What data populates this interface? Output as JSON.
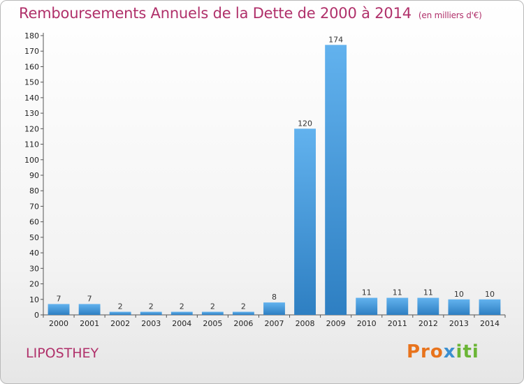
{
  "title": "Remboursements Annuels de la Dette de 2000 à 2014",
  "subtitle": "(en milliers d'€)",
  "commune": "LIPOSTHEY",
  "logo": {
    "part1": "Pro",
    "part2": "x",
    "part3": "iti"
  },
  "colors": {
    "title": "#b0306a",
    "bar_top": "#62b2ee",
    "bar_bottom": "#2e7fc2"
  },
  "chart_data": {
    "type": "bar",
    "title": "Remboursements Annuels de la Dette de 2000 à 2014",
    "subtitle": "(en milliers d'€)",
    "categories": [
      "2000",
      "2001",
      "2002",
      "2003",
      "2004",
      "2005",
      "2006",
      "2007",
      "2008",
      "2009",
      "2010",
      "2011",
      "2012",
      "2013",
      "2014"
    ],
    "values": [
      7,
      7,
      2,
      2,
      2,
      2,
      2,
      8,
      120,
      174,
      11,
      11,
      11,
      10,
      10
    ],
    "ylim": [
      0,
      180
    ],
    "yticks": [
      0,
      10,
      20,
      30,
      40,
      50,
      60,
      70,
      80,
      90,
      100,
      110,
      120,
      130,
      140,
      150,
      160,
      170,
      180
    ],
    "grid": false,
    "data_labels": true
  }
}
